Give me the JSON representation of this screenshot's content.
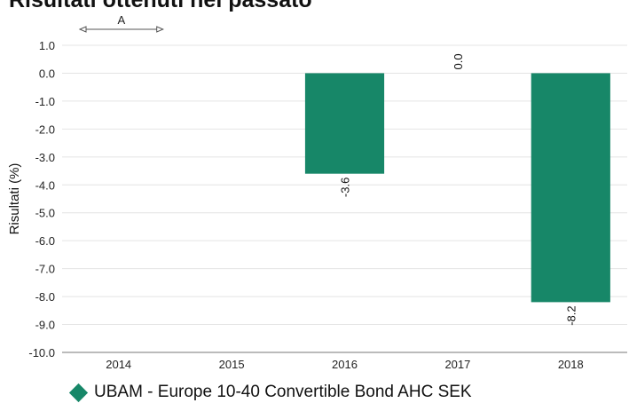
{
  "title": "Risultati ottenuti nel passato",
  "colors": {
    "bar": "#178768",
    "grid": "#e4e4e4",
    "axis": "#777777"
  },
  "chart_data": {
    "type": "bar",
    "title": "Risultati ottenuti nel passato",
    "xlabel": "",
    "ylabel": "Risultati (%)",
    "categories": [
      "2014",
      "2015",
      "2016",
      "2017",
      "2018"
    ],
    "series": [
      {
        "name": "UBAM - Europe 10-40 Convertible Bond AHC SEK",
        "values": [
          null,
          null,
          -3.6,
          0.0,
          -8.2
        ],
        "labels": [
          "",
          "",
          "-3.6",
          "0.0",
          "-8.2"
        ]
      }
    ],
    "ylim": [
      -10.0,
      1.0
    ],
    "yticks": [
      "1.0",
      "0.0",
      "-1.0",
      "-2.0",
      "-3.0",
      "-4.0",
      "-5.0",
      "-6.0",
      "-7.0",
      "-8.0",
      "-9.0",
      "-10.0"
    ],
    "annotation": {
      "text": "A",
      "from_category": "2014"
    },
    "grid": true,
    "legend": "bottom-left"
  }
}
